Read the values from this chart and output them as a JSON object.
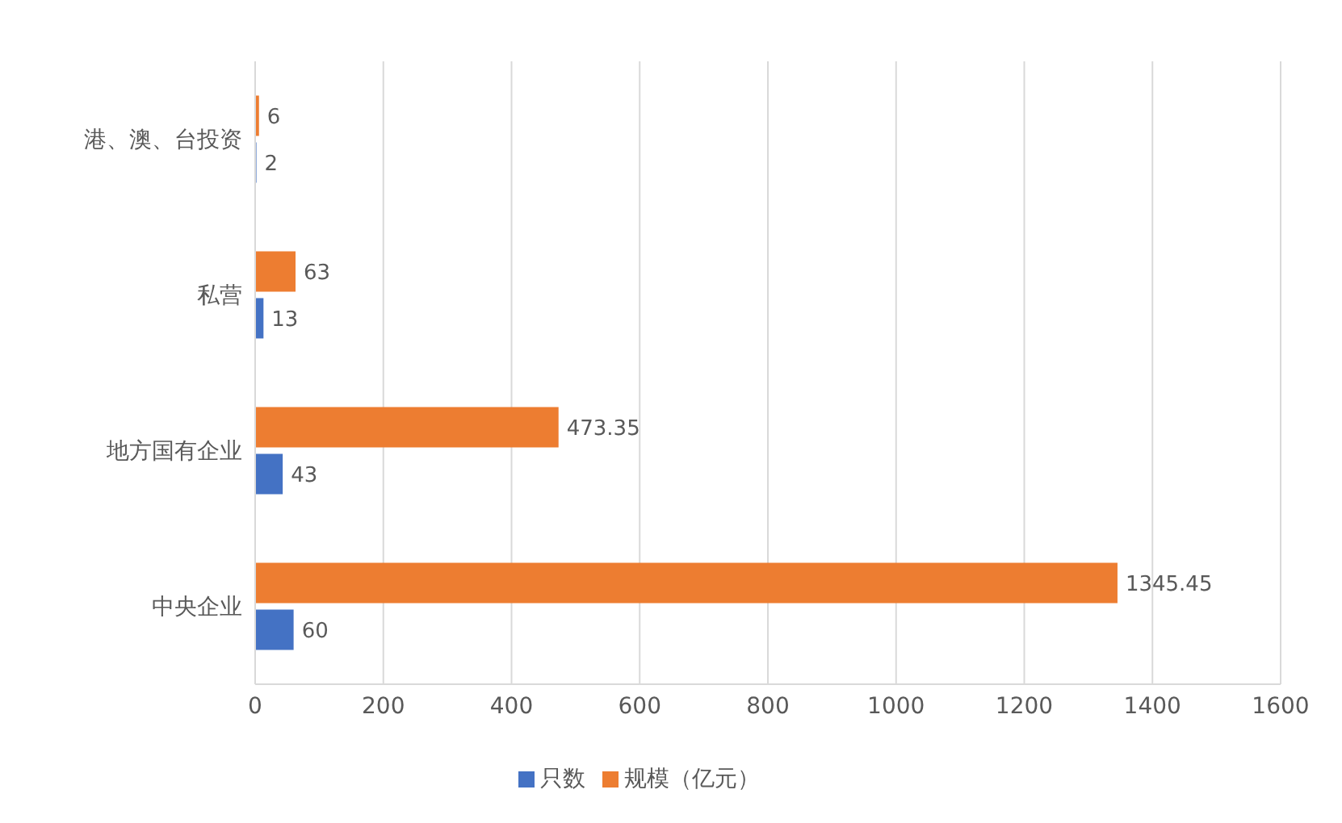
{
  "chart_data": {
    "type": "bar",
    "orientation": "horizontal",
    "categories": [
      "港、澳、台投资",
      "私营",
      "地方国有企业",
      "中央企业"
    ],
    "series": [
      {
        "name": "规模（亿元）",
        "color": "#ed7d31",
        "values": [
          6,
          63,
          473.35,
          1345.45
        ]
      },
      {
        "name": "只数",
        "color": "#4472c4",
        "values": [
          2,
          13,
          43,
          60
        ]
      }
    ],
    "xlim": [
      0,
      1600
    ],
    "xticks": [
      0,
      200,
      400,
      600,
      800,
      1000,
      1200,
      1400,
      1600
    ],
    "grid": "x",
    "legend": "bottom",
    "data_labels": true
  }
}
